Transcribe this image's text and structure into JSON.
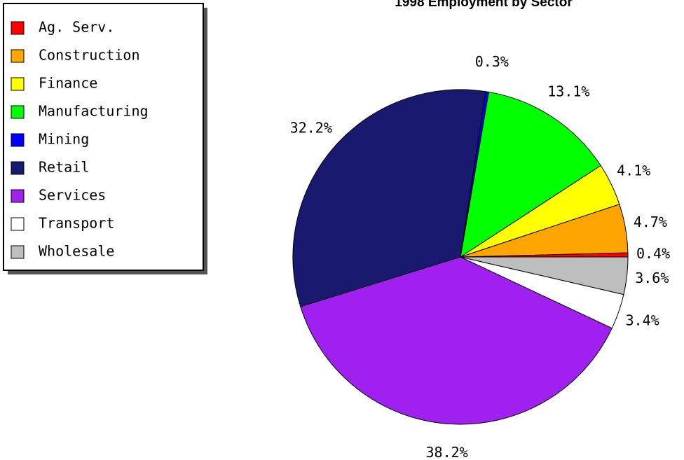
{
  "chart_data": {
    "type": "pie",
    "title": "1998 Employment by Sector",
    "categories": [
      "Ag. Serv.",
      "Construction",
      "Finance",
      "Manufacturing",
      "Mining",
      "Retail",
      "Services",
      "Transport",
      "Wholesale"
    ],
    "values": [
      0.4,
      4.7,
      4.1,
      13.1,
      0.3,
      32.2,
      38.2,
      3.4,
      3.6
    ],
    "value_labels": [
      "0.4%",
      "4.7%",
      "4.1%",
      "13.1%",
      "0.3%",
      "32.2%",
      "38.2%",
      "3.4%",
      "3.6%"
    ],
    "colors": [
      "#ff0000",
      "#ffa500",
      "#ffff00",
      "#00ff00",
      "#0000ff",
      "#191970",
      "#a020f0",
      "#ffffff",
      "#bebebe"
    ],
    "legend": "upper left"
  }
}
